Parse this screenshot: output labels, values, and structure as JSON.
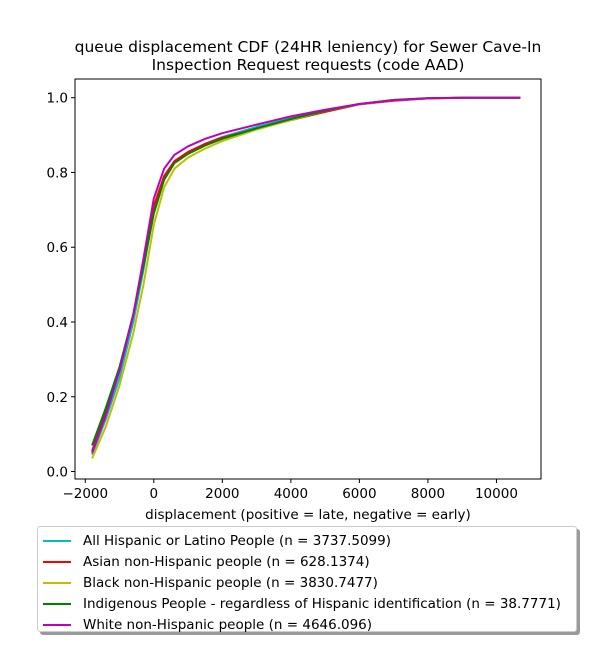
{
  "chart_data": {
    "type": "line",
    "title_lines": [
      "queue displacement CDF (24HR leniency) for Sewer Cave-In",
      "Inspection Request  requests (code AAD)"
    ],
    "xlabel": "displacement (positive = late, negative = early)",
    "ylabel": "",
    "xlim": [
      -2300,
      11300
    ],
    "ylim": [
      -0.02,
      1.05
    ],
    "x_ticks": [
      -2000,
      0,
      2000,
      4000,
      6000,
      8000,
      10000
    ],
    "x_tick_labels": [
      "−2000",
      "0",
      "2000",
      "4000",
      "6000",
      "8000",
      "10000"
    ],
    "y_ticks": [
      0.0,
      0.2,
      0.4,
      0.6,
      0.8,
      1.0
    ],
    "y_tick_labels": [
      "0.0",
      "0.2",
      "0.4",
      "0.6",
      "0.8",
      "1.0"
    ],
    "grid": false,
    "legend_position": "below",
    "series": [
      {
        "name": "All Hispanic or Latino People (n = 3737.5099)",
        "color": "#00bfbf",
        "x": [
          -1800,
          -1400,
          -1000,
          -600,
          -300,
          0,
          300,
          600,
          1000,
          1500,
          2000,
          3000,
          4000,
          5000,
          6000,
          7000,
          8000,
          9000,
          10000,
          10700
        ],
        "y": [
          0.045,
          0.14,
          0.25,
          0.4,
          0.54,
          0.7,
          0.79,
          0.83,
          0.855,
          0.877,
          0.895,
          0.922,
          0.945,
          0.966,
          0.983,
          0.993,
          0.998,
          1.0,
          1.0,
          1.0
        ]
      },
      {
        "name": "Asian non-Hispanic people (n = 628.1374)",
        "color": "#ff0000",
        "x": [
          -1800,
          -1400,
          -1000,
          -600,
          -300,
          0,
          300,
          600,
          1000,
          1500,
          2000,
          3000,
          4000,
          5000,
          6000,
          7000,
          8000,
          9000,
          10000,
          10700
        ],
        "y": [
          0.055,
          0.16,
          0.27,
          0.42,
          0.56,
          0.71,
          0.79,
          0.83,
          0.855,
          0.876,
          0.893,
          0.917,
          0.94,
          0.962,
          0.982,
          0.992,
          0.998,
          1.0,
          1.0,
          1.0
        ]
      },
      {
        "name": "Black non-Hispanic people (n = 3830.7477)",
        "color": "#bfbf00",
        "x": [
          -1800,
          -1400,
          -1000,
          -600,
          -300,
          0,
          300,
          600,
          1000,
          1500,
          2000,
          3000,
          4000,
          5000,
          6000,
          7000,
          8000,
          9000,
          10000,
          10700
        ],
        "y": [
          0.035,
          0.12,
          0.23,
          0.37,
          0.5,
          0.66,
          0.76,
          0.81,
          0.84,
          0.864,
          0.884,
          0.915,
          0.94,
          0.965,
          0.982,
          0.993,
          0.998,
          1.0,
          1.0,
          1.0
        ]
      },
      {
        "name": "Indigenous People - regardless of Hispanic identification (n = 38.7771)",
        "color": "#008000",
        "x": [
          -1800,
          -1400,
          -1000,
          -600,
          -300,
          0,
          300,
          600,
          1000,
          1500,
          2000,
          3000,
          4000,
          5000,
          6000,
          7000,
          8000,
          9000,
          10000,
          10700
        ],
        "y": [
          0.07,
          0.17,
          0.28,
          0.42,
          0.55,
          0.69,
          0.78,
          0.825,
          0.85,
          0.872,
          0.89,
          0.918,
          0.943,
          0.965,
          0.983,
          0.994,
          0.999,
          1.0,
          1.0,
          1.0
        ]
      },
      {
        "name": "White non-Hispanic people (n = 4646.096)",
        "color": "#bf00bf",
        "x": [
          -1800,
          -1400,
          -1000,
          -600,
          -300,
          0,
          300,
          600,
          1000,
          1500,
          2000,
          3000,
          4000,
          5000,
          6000,
          7000,
          8000,
          9000,
          10000,
          10700
        ],
        "y": [
          0.05,
          0.15,
          0.27,
          0.42,
          0.57,
          0.73,
          0.81,
          0.847,
          0.87,
          0.89,
          0.905,
          0.928,
          0.95,
          0.968,
          0.983,
          0.993,
          0.998,
          1.0,
          1.0,
          1.0
        ]
      }
    ]
  }
}
